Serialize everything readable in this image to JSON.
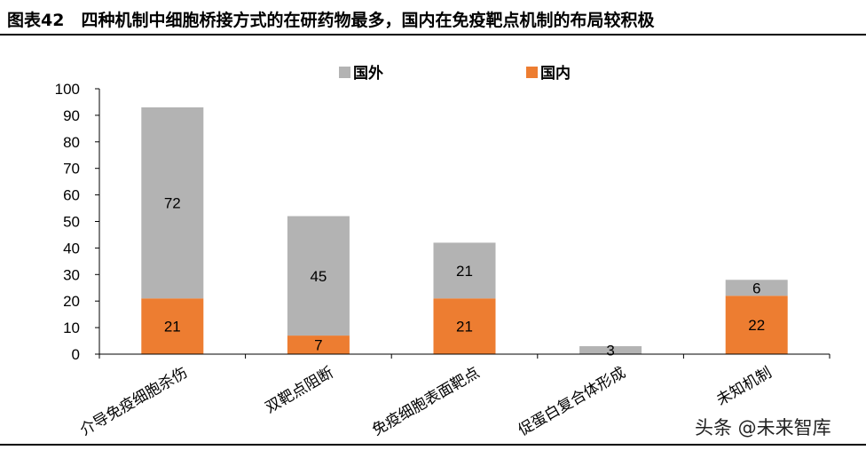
{
  "header": {
    "title": "图表42　四种机制中细胞桥接方式的在研药物最多，国内在免疫靶点机制的布局较积极"
  },
  "watermark": "头条 @未来智库",
  "colors": {
    "foreign": "#B3B3B3",
    "domestic": "#ED7D31",
    "axis": "#000000"
  },
  "chart_data": {
    "type": "bar",
    "stacked": true,
    "title": "",
    "xlabel": "",
    "ylabel": "",
    "ylim": [
      0,
      100
    ],
    "yticks": [
      0,
      10,
      20,
      30,
      40,
      50,
      60,
      70,
      80,
      90,
      100
    ],
    "grid": false,
    "legend_position": "top-center",
    "categories": [
      "介导免疫细胞杀伤",
      "双靶点阻断",
      "免疫细胞表面靶点",
      "促蛋白复合体形成",
      "未知机制"
    ],
    "series": [
      {
        "name": "国内",
        "color": "#ED7D31",
        "values": [
          21,
          7,
          21,
          0,
          22
        ]
      },
      {
        "name": "国外",
        "color": "#B3B3B3",
        "values": [
          72,
          45,
          21,
          3,
          6
        ]
      }
    ],
    "legend_order": [
      "国外",
      "国内"
    ]
  }
}
